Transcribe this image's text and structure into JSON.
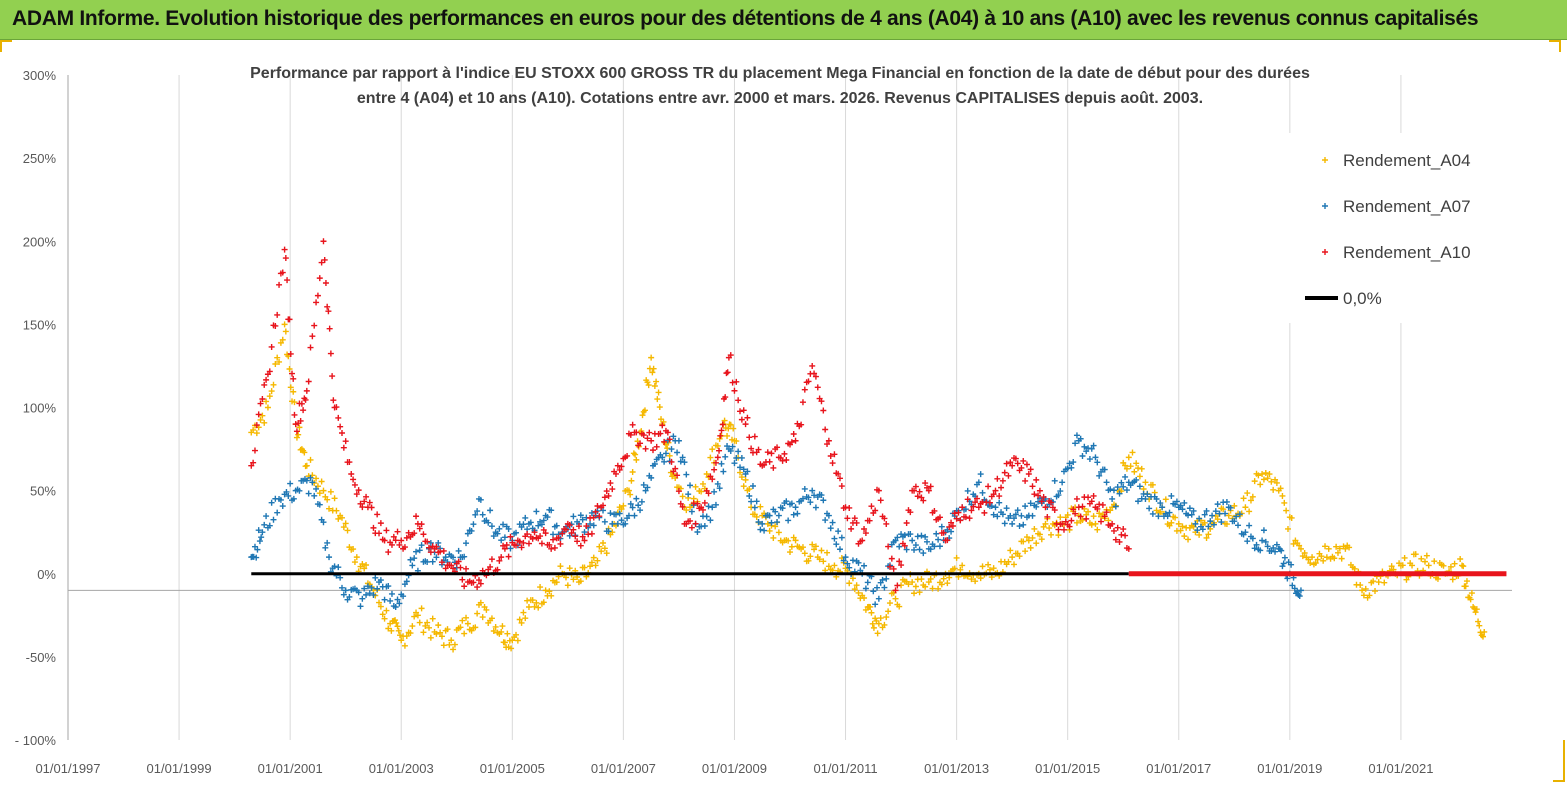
{
  "banner": {
    "title": "ADAM Informe. Evolution historique des performances en euros pour des détentions de 4 ans (A04) à 10 ans (A10) avec les revenus connus capitalisés"
  },
  "colors": {
    "banner": "#92d050",
    "a04": "#f5b800",
    "a07": "#1f77b4",
    "a10": "#e8141c",
    "zero": "#000000",
    "axis": "#9a9a9a"
  },
  "chart_data": {
    "type": "scatter",
    "title_line1": "Performance par rapport à l'indice EU STOXX 600 GROSS TR  du placement Mega Financial  en fonction de la date de début pour des durées",
    "title_line2": "entre 4 (A04) et 10 ans (A10). Cotations entre avr. 2000 et mars. 2026. Revenus CAPITALISES depuis août. 2003.",
    "xlabel": "",
    "ylabel": "",
    "ylim": [
      -100,
      300
    ],
    "xlim": [
      1997.0,
      2023.0
    ],
    "y_ticks": [
      "300%",
      "250%",
      "200%",
      "150%",
      "100%",
      "50%",
      "0%",
      "-50%",
      "- 100%"
    ],
    "y_tick_values": [
      300,
      250,
      200,
      150,
      100,
      50,
      0,
      -50,
      -100
    ],
    "x_ticks": [
      "01/01/1997",
      "01/01/1999",
      "01/01/2001",
      "01/01/2003",
      "01/01/2005",
      "01/01/2007",
      "01/01/2009",
      "01/01/2011",
      "01/01/2013",
      "01/01/2015",
      "01/01/2017",
      "01/01/2019",
      "01/01/2021"
    ],
    "x_tick_values": [
      1997,
      1999,
      2001,
      2003,
      2005,
      2007,
      2009,
      2011,
      2013,
      2015,
      2017,
      2019,
      2021
    ],
    "legend_position": "top-right",
    "series": [
      {
        "name": "Rendement_A04",
        "color": "#f5b800",
        "x": [
          2000.3,
          2000.6,
          2000.9,
          2001.1,
          2001.3,
          2001.6,
          2001.9,
          2002.2,
          2002.5,
          2002.8,
          2003.0,
          2003.3,
          2003.6,
          2003.9,
          2004.2,
          2004.5,
          2004.8,
          2005.0,
          2005.3,
          2005.6,
          2005.9,
          2006.2,
          2006.5,
          2006.8,
          2007.1,
          2007.3,
          2007.5,
          2007.7,
          2007.9,
          2008.2,
          2008.5,
          2008.8,
          2009.0,
          2009.3,
          2009.6,
          2009.9,
          2010.2,
          2010.5,
          2010.8,
          2011.1,
          2011.4,
          2011.6,
          2011.9,
          2012.2,
          2012.5,
          2012.8,
          2013.1,
          2013.4,
          2013.7,
          2014.0,
          2014.3,
          2014.6,
          2014.9,
          2015.2,
          2015.5,
          2015.8,
          2016.1,
          2016.4,
          2016.7,
          2017.0,
          2017.3,
          2017.6,
          2017.9,
          2018.2,
          2018.5,
          2018.8,
          2019.1,
          2019.4,
          2019.7,
          2020.0,
          2020.3,
          2020.6,
          2020.9,
          2021.2,
          2021.5,
          2021.8,
          2022.1,
          2022.3,
          2022.5
        ],
        "y": [
          85,
          100,
          150,
          90,
          65,
          50,
          35,
          10,
          -10,
          -30,
          -40,
          -25,
          -35,
          -40,
          -30,
          -20,
          -35,
          -40,
          -20,
          -10,
          0,
          -5,
          5,
          25,
          50,
          85,
          130,
          90,
          60,
          40,
          60,
          90,
          80,
          40,
          30,
          20,
          15,
          10,
          5,
          0,
          -20,
          -30,
          -15,
          -5,
          -5,
          0,
          5,
          0,
          0,
          10,
          20,
          30,
          30,
          35,
          30,
          40,
          70,
          55,
          40,
          30,
          25,
          30,
          35,
          40,
          60,
          50,
          20,
          10,
          15,
          15,
          -10,
          -5,
          0,
          5,
          5,
          0,
          5,
          -20,
          -35
        ]
      },
      {
        "name": "Rendement_A07",
        "color": "#1f77b4",
        "x": [
          2000.3,
          2000.5,
          2000.8,
          2001.1,
          2001.4,
          2001.7,
          2002.0,
          2002.3,
          2002.6,
          2002.9,
          2003.2,
          2003.5,
          2003.8,
          2004.1,
          2004.4,
          2004.7,
          2005.0,
          2005.3,
          2005.6,
          2005.9,
          2006.2,
          2006.5,
          2006.8,
          2007.1,
          2007.4,
          2007.7,
          2008.0,
          2008.3,
          2008.6,
          2008.9,
          2009.2,
          2009.5,
          2009.8,
          2010.1,
          2010.4,
          2010.7,
          2011.0,
          2011.3,
          2011.6,
          2011.9,
          2012.2,
          2012.5,
          2012.8,
          2013.1,
          2013.4,
          2013.7,
          2014.0,
          2014.3,
          2014.6,
          2014.9,
          2015.2,
          2015.5,
          2015.8,
          2016.1,
          2016.4,
          2016.7,
          2017.0,
          2017.3,
          2017.6,
          2017.9,
          2018.2,
          2018.5,
          2018.8,
          2019.0,
          2019.2
        ],
        "y": [
          10,
          25,
          45,
          50,
          55,
          10,
          -10,
          -15,
          -5,
          -20,
          5,
          15,
          10,
          10,
          45,
          25,
          20,
          30,
          35,
          25,
          30,
          35,
          30,
          35,
          50,
          70,
          80,
          30,
          40,
          75,
          60,
          30,
          35,
          40,
          50,
          35,
          10,
          0,
          -15,
          20,
          20,
          15,
          25,
          40,
          55,
          40,
          30,
          35,
          45,
          55,
          80,
          70,
          45,
          55,
          45,
          40,
          40,
          30,
          35,
          40,
          25,
          20,
          15,
          0,
          -10
        ]
      },
      {
        "name": "Rendement_A10",
        "color": "#e8141c",
        "x": [
          2000.3,
          2000.6,
          2000.9,
          2001.1,
          2001.3,
          2001.6,
          2001.8,
          2002.1,
          2002.4,
          2002.7,
          2003.0,
          2003.3,
          2003.6,
          2003.9,
          2004.2,
          2004.5,
          2004.8,
          2005.1,
          2005.4,
          2005.7,
          2006.0,
          2006.3,
          2006.6,
          2006.9,
          2007.2,
          2007.5,
          2007.8,
          2008.1,
          2008.4,
          2008.7,
          2008.9,
          2009.2,
          2009.5,
          2009.8,
          2010.1,
          2010.4,
          2010.7,
          2011.0,
          2011.3,
          2011.6,
          2011.9,
          2012.2,
          2012.5,
          2012.8,
          2013.1,
          2013.4,
          2013.7,
          2014.0,
          2014.3,
          2014.6,
          2014.9,
          2015.2,
          2015.5,
          2015.8,
          2016.1
        ],
        "y": [
          65,
          120,
          195,
          90,
          110,
          200,
          100,
          60,
          40,
          20,
          20,
          30,
          15,
          5,
          -5,
          0,
          10,
          20,
          25,
          15,
          30,
          20,
          40,
          65,
          85,
          80,
          85,
          30,
          40,
          70,
          130,
          90,
          65,
          70,
          80,
          125,
          80,
          40,
          20,
          50,
          -10,
          50,
          50,
          20,
          40,
          40,
          50,
          65,
          60,
          40,
          30,
          40,
          40,
          30,
          15
        ]
      },
      {
        "name": "0,0%",
        "color": "#000000",
        "x": [
          2000.3,
          2016.1
        ],
        "y": [
          0,
          0
        ]
      },
      {
        "name": "Rendement_A10 (0%)",
        "color": "#e8141c",
        "x": [
          2016.1,
          2022.9
        ],
        "y": [
          0,
          0
        ]
      }
    ],
    "legend": [
      {
        "label": "Rendement_A04",
        "marker": "plus",
        "color": "#f5b800"
      },
      {
        "label": "Rendement_A07",
        "marker": "plus",
        "color": "#1f77b4"
      },
      {
        "label": "Rendement_A10",
        "marker": "plus",
        "color": "#e8141c"
      },
      {
        "label": "0,0%",
        "marker": "line",
        "color": "#000000"
      }
    ]
  }
}
